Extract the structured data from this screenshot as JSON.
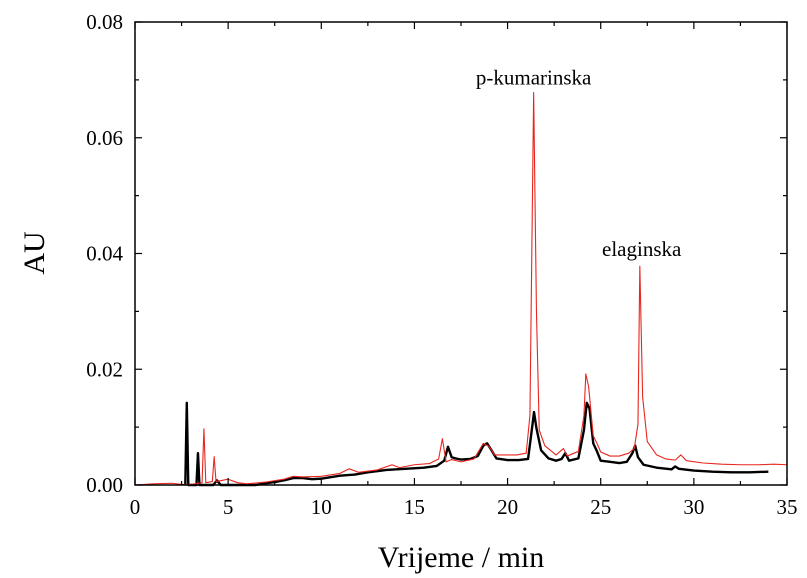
{
  "chart_data": {
    "type": "line",
    "xlabel": "Vrijeme / min",
    "ylabel": "AU",
    "xlim": [
      0,
      35
    ],
    "ylim": [
      0,
      0.08
    ],
    "x_ticks": [
      "0",
      "5",
      "10",
      "15",
      "20",
      "25",
      "30",
      "35"
    ],
    "y_ticks": [
      "0.00",
      "0.02",
      "0.04",
      "0.06",
      "0.08"
    ],
    "grid": false,
    "legend": "none",
    "annotations": [
      {
        "text": "p-kumarinska",
        "x": 21.4,
        "y": 0.0682
      },
      {
        "text": "elaginska",
        "x": 27.2,
        "y": 0.0385
      }
    ],
    "series": [
      {
        "color": "#000000",
        "points": [
          [
            2.7,
            0.0
          ],
          [
            2.78,
            0.0142
          ],
          [
            2.86,
            0.0
          ],
          [
            3.3,
            0.0
          ],
          [
            3.38,
            0.0055
          ],
          [
            3.46,
            0.0
          ],
          [
            4.2,
            0.0
          ],
          [
            4.4,
            0.0008
          ],
          [
            4.6,
            0.0
          ],
          [
            6.5,
            0.0
          ],
          [
            7.0,
            0.0003
          ],
          [
            7.5,
            0.0005
          ],
          [
            8.0,
            0.0008
          ],
          [
            8.5,
            0.0012
          ],
          [
            9.0,
            0.0012
          ],
          [
            9.5,
            0.001
          ],
          [
            10.0,
            0.0011
          ],
          [
            11.0,
            0.0016
          ],
          [
            11.8,
            0.0018
          ],
          [
            12.5,
            0.0022
          ],
          [
            13.5,
            0.0026
          ],
          [
            14.5,
            0.0028
          ],
          [
            15.5,
            0.003
          ],
          [
            16.2,
            0.0033
          ],
          [
            16.6,
            0.0042
          ],
          [
            16.8,
            0.0066
          ],
          [
            17.0,
            0.0048
          ],
          [
            17.2,
            0.0046
          ],
          [
            17.5,
            0.0044
          ],
          [
            18.0,
            0.0045
          ],
          [
            18.4,
            0.005
          ],
          [
            18.7,
            0.0068
          ],
          [
            18.9,
            0.0072
          ],
          [
            19.1,
            0.0062
          ],
          [
            19.4,
            0.0046
          ],
          [
            20.0,
            0.0043
          ],
          [
            20.6,
            0.0043
          ],
          [
            21.1,
            0.0045
          ],
          [
            21.3,
            0.0095
          ],
          [
            21.42,
            0.0126
          ],
          [
            21.55,
            0.0098
          ],
          [
            21.8,
            0.006
          ],
          [
            22.2,
            0.0046
          ],
          [
            22.6,
            0.0042
          ],
          [
            22.9,
            0.0045
          ],
          [
            23.1,
            0.0055
          ],
          [
            23.3,
            0.0042
          ],
          [
            23.8,
            0.0046
          ],
          [
            24.1,
            0.0095
          ],
          [
            24.25,
            0.0142
          ],
          [
            24.4,
            0.0132
          ],
          [
            24.6,
            0.0072
          ],
          [
            24.8,
            0.0058
          ],
          [
            25.0,
            0.0042
          ],
          [
            25.5,
            0.004
          ],
          [
            26.0,
            0.0038
          ],
          [
            26.4,
            0.004
          ],
          [
            26.7,
            0.0055
          ],
          [
            26.85,
            0.0068
          ],
          [
            27.0,
            0.0048
          ],
          [
            27.3,
            0.0035
          ],
          [
            28.0,
            0.003
          ],
          [
            28.8,
            0.0027
          ],
          [
            29.0,
            0.0032
          ],
          [
            29.2,
            0.0028
          ],
          [
            30.0,
            0.0025
          ],
          [
            31.0,
            0.0023
          ],
          [
            32.0,
            0.0022
          ],
          [
            33.0,
            0.0022
          ],
          [
            34.0,
            0.0023
          ]
        ]
      },
      {
        "color": "#e8261f",
        "points": [
          [
            0.0,
            0.0
          ],
          [
            1.0,
            0.0002
          ],
          [
            2.0,
            0.0003
          ],
          [
            2.5,
            0.0001
          ],
          [
            3.0,
            0.0001
          ],
          [
            3.6,
            0.0004
          ],
          [
            3.7,
            0.0097
          ],
          [
            3.8,
            0.0004
          ],
          [
            4.15,
            0.0006
          ],
          [
            4.25,
            0.0049
          ],
          [
            4.35,
            0.0006
          ],
          [
            5.0,
            0.001
          ],
          [
            5.5,
            0.0004
          ],
          [
            6.0,
            0.0002
          ],
          [
            7.0,
            0.0005
          ],
          [
            8.0,
            0.001
          ],
          [
            8.5,
            0.0015
          ],
          [
            9.0,
            0.0014
          ],
          [
            10.0,
            0.0015
          ],
          [
            11.0,
            0.002
          ],
          [
            11.5,
            0.0028
          ],
          [
            12.0,
            0.0022
          ],
          [
            13.0,
            0.0026
          ],
          [
            13.8,
            0.0035
          ],
          [
            14.2,
            0.003
          ],
          [
            15.0,
            0.0035
          ],
          [
            15.8,
            0.0037
          ],
          [
            16.3,
            0.0045
          ],
          [
            16.5,
            0.008
          ],
          [
            16.7,
            0.004
          ],
          [
            17.0,
            0.0044
          ],
          [
            17.5,
            0.004
          ],
          [
            18.2,
            0.0045
          ],
          [
            18.7,
            0.0072
          ],
          [
            19.0,
            0.0067
          ],
          [
            19.3,
            0.0052
          ],
          [
            20.0,
            0.0052
          ],
          [
            20.5,
            0.0052
          ],
          [
            21.0,
            0.0055
          ],
          [
            21.2,
            0.012
          ],
          [
            21.4,
            0.0678
          ],
          [
            21.55,
            0.03
          ],
          [
            21.7,
            0.0095
          ],
          [
            22.0,
            0.0068
          ],
          [
            22.3,
            0.006
          ],
          [
            22.6,
            0.0052
          ],
          [
            23.0,
            0.0063
          ],
          [
            23.2,
            0.005
          ],
          [
            23.8,
            0.0058
          ],
          [
            24.1,
            0.012
          ],
          [
            24.2,
            0.0192
          ],
          [
            24.35,
            0.017
          ],
          [
            24.6,
            0.0085
          ],
          [
            24.8,
            0.0072
          ],
          [
            25.0,
            0.0057
          ],
          [
            25.5,
            0.005
          ],
          [
            26.0,
            0.005
          ],
          [
            26.5,
            0.0055
          ],
          [
            26.8,
            0.0063
          ],
          [
            27.0,
            0.0105
          ],
          [
            27.1,
            0.0378
          ],
          [
            27.25,
            0.0152
          ],
          [
            27.5,
            0.0075
          ],
          [
            28.0,
            0.0052
          ],
          [
            28.5,
            0.0045
          ],
          [
            29.0,
            0.0043
          ],
          [
            29.3,
            0.0052
          ],
          [
            29.6,
            0.0042
          ],
          [
            30.5,
            0.0038
          ],
          [
            31.5,
            0.0036
          ],
          [
            32.5,
            0.0035
          ],
          [
            33.5,
            0.0035
          ],
          [
            34.3,
            0.0036
          ],
          [
            35.0,
            0.0035
          ]
        ]
      }
    ]
  }
}
